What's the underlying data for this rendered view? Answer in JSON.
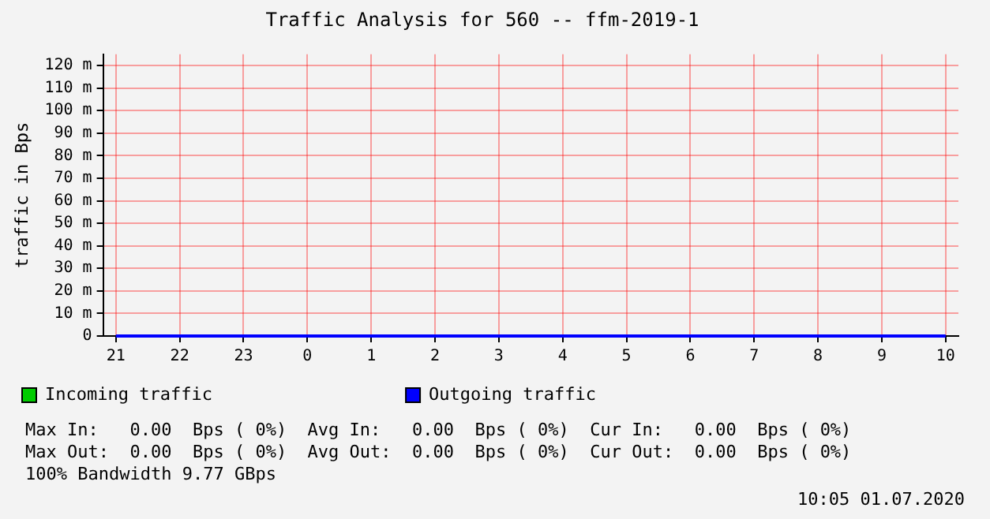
{
  "chart_data": {
    "type": "line",
    "title": "Traffic Analysis for 560 -- ffm-2019-1",
    "ylabel": "traffic in Bps",
    "categories": [
      "21",
      "22",
      "23",
      "0",
      "1",
      "2",
      "3",
      "4",
      "5",
      "6",
      "7",
      "8",
      "9",
      "10"
    ],
    "series": [
      {
        "name": "Incoming traffic",
        "color": "#00cc00",
        "values": [
          null,
          null,
          null,
          null,
          null,
          null,
          null,
          null,
          null,
          null,
          null,
          null,
          null,
          null
        ]
      },
      {
        "name": "Outgoing traffic",
        "color": "#0000ff",
        "values": [
          0,
          0,
          0,
          0,
          0,
          0,
          0,
          0,
          0,
          0,
          0,
          0,
          0,
          0
        ]
      }
    ],
    "ylim": [
      0,
      125
    ],
    "yticks": [
      0,
      {
        "value": 10,
        "label": "10 m"
      },
      {
        "value": 20,
        "label": "20 m"
      },
      {
        "value": 30,
        "label": "30 m"
      },
      {
        "value": 40,
        "label": "40 m"
      },
      {
        "value": 50,
        "label": "50 m"
      },
      {
        "value": 60,
        "label": "60 m"
      },
      {
        "value": 70,
        "label": "70 m"
      },
      {
        "value": 80,
        "label": "80 m"
      },
      {
        "value": 90,
        "label": "90 m"
      },
      {
        "value": 100,
        "label": "100 m"
      },
      {
        "value": 110,
        "label": "110 m"
      },
      {
        "value": 120,
        "label": "120 m"
      }
    ],
    "grid": true,
    "legend": "bottom",
    "marker": "none",
    "line_style": "solid",
    "annotations": [
      "Max In:   0.00  Bps ( 0%)  Avg In:   0.00  Bps ( 0%)  Cur In:   0.00  Bps ( 0%)",
      "Max Out:  0.00  Bps ( 0%)  Avg Out:  0.00  Bps ( 0%)  Cur Out:  0.00  Bps ( 0%)",
      "100% Bandwidth 9.77 GBps",
      "10:05 01.07.2020"
    ]
  }
}
